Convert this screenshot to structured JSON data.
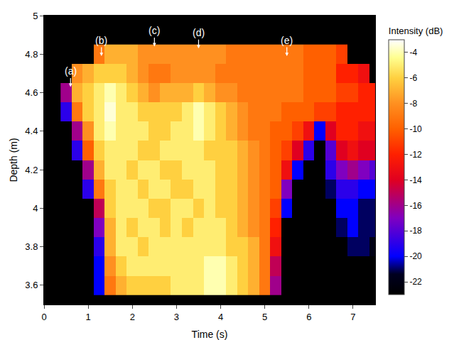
{
  "chart_data": {
    "type": "heatmap",
    "xlabel": "Time (s)",
    "ylabel": "Depth (m)",
    "xlim": [
      0,
      7.5
    ],
    "ylim": [
      3.5,
      5
    ],
    "xticks": [
      0,
      1,
      2,
      3,
      4,
      5,
      6,
      7
    ],
    "yticks": [
      3.6,
      3.8,
      4,
      4.2,
      4.4,
      4.6,
      4.8,
      5
    ],
    "x": [
      0.5,
      0.75,
      1.0,
      1.25,
      1.5,
      1.75,
      2.0,
      2.25,
      2.5,
      2.75,
      3.0,
      3.25,
      3.5,
      3.75,
      4.0,
      4.25,
      4.5,
      4.75,
      5.0,
      5.25,
      5.5,
      5.75,
      6.0,
      6.25,
      6.5,
      6.75,
      7.0,
      7.25,
      7.5
    ],
    "y": [
      3.6,
      3.7,
      3.8,
      3.9,
      4.0,
      4.1,
      4.2,
      4.3,
      4.4,
      4.5,
      4.6,
      4.7,
      4.8
    ],
    "z": [
      [
        null,
        null,
        null,
        -20,
        -9,
        -7,
        -6,
        -6,
        -6,
        -6,
        -5,
        -5,
        -5,
        -4,
        -4,
        -5,
        -6,
        -7,
        -9,
        -16,
        null,
        null,
        null,
        null,
        null,
        null,
        null,
        null,
        null
      ],
      [
        null,
        null,
        null,
        -20,
        -8,
        -6,
        -5,
        -5,
        -5,
        -5,
        -5,
        -5,
        -5,
        -4,
        -4,
        -5,
        -6,
        -7,
        -9,
        -15,
        null,
        null,
        null,
        null,
        null,
        null,
        null,
        null,
        null
      ],
      [
        null,
        null,
        null,
        -19,
        -7,
        -5,
        -5,
        -6,
        -5,
        -5,
        -5,
        -5,
        -5,
        -5,
        -5,
        -6,
        -6,
        -7,
        -9,
        -13,
        null,
        null,
        null,
        null,
        null,
        null,
        -21,
        -21,
        -22
      ],
      [
        null,
        null,
        null,
        -17,
        -7,
        -5,
        -6,
        -5,
        -5,
        -6,
        -5,
        -6,
        -5,
        -5,
        -5,
        -6,
        -7,
        -8,
        -9,
        -12,
        null,
        null,
        null,
        null,
        null,
        -21,
        -20,
        -21,
        -21
      ],
      [
        null,
        null,
        null,
        -15,
        -6,
        -5,
        -5,
        -5,
        -6,
        -6,
        -5,
        -5,
        -6,
        -5,
        -6,
        -6,
        -7,
        -8,
        -9,
        -11,
        -20,
        null,
        null,
        null,
        null,
        -20,
        -20,
        -21,
        -21
      ],
      [
        null,
        null,
        -19,
        -9,
        -6,
        -5,
        -5,
        -6,
        -5,
        -5,
        -6,
        -6,
        -5,
        -5,
        -6,
        -6,
        -7,
        -8,
        -9,
        -10,
        -17,
        null,
        null,
        null,
        -21,
        -19,
        -19,
        -20,
        -20
      ],
      [
        null,
        null,
        -16,
        -7,
        -5,
        -5,
        -6,
        -5,
        -5,
        -6,
        -6,
        -5,
        -5,
        -5,
        -6,
        -6,
        -7,
        -8,
        -9,
        -10,
        -13,
        -20,
        null,
        null,
        -19,
        -17,
        -16,
        -17,
        -18
      ],
      [
        null,
        -19,
        -10,
        -6,
        -5,
        -5,
        -5,
        -6,
        -6,
        -5,
        -5,
        -5,
        -5,
        -6,
        -6,
        -6,
        -7,
        -8,
        -9,
        -10,
        -11,
        -14,
        -19,
        null,
        -18,
        -14,
        -13,
        -14,
        -14
      ],
      [
        null,
        -16,
        -8,
        -5,
        -4,
        -5,
        -5,
        -5,
        -6,
        -6,
        -5,
        -5,
        -4,
        -5,
        -6,
        -7,
        -8,
        -9,
        -9,
        -10,
        -10,
        -11,
        -13,
        -20,
        -14,
        -12,
        -12,
        -13,
        -13
      ],
      [
        -19,
        -9,
        -6,
        -5,
        -3.5,
        -5,
        -5,
        -6,
        -6,
        -6,
        -6,
        -5,
        -4,
        -5,
        -6,
        -7,
        -8,
        -9,
        -9,
        -9,
        -10,
        -10,
        -10,
        -11,
        -11,
        -12,
        -12,
        -12,
        -12
      ],
      [
        -16,
        -7,
        -6,
        -5,
        -4,
        -5,
        -6,
        -7,
        -8,
        -7,
        -7,
        -7,
        -6,
        -7,
        -8,
        -8,
        -9,
        -9,
        -9,
        -9,
        -9,
        -9,
        -10,
        -10,
        -10,
        -11,
        -11,
        -12,
        -12
      ],
      [
        null,
        -8,
        -7,
        -6,
        -6,
        -6,
        -7,
        -8,
        -9,
        -9,
        -8,
        -8,
        -8,
        -8,
        -9,
        -9,
        -9,
        -9,
        -9,
        -9,
        -9,
        -9,
        -10,
        -10,
        -10,
        -12,
        -12,
        -13,
        null
      ],
      [
        null,
        null,
        null,
        -9,
        -7,
        -7,
        -7,
        -8,
        -8,
        -8,
        -8,
        -8,
        -8,
        -8,
        -8,
        -9,
        -9,
        -9,
        -9,
        -9,
        -9,
        -9,
        -10,
        -10,
        -10,
        -11,
        null,
        null,
        null
      ]
    ],
    "colorbar": {
      "title": "Intensity (dB)",
      "range": [
        -23,
        -3
      ],
      "ticks": [
        -22,
        -20,
        -18,
        -16,
        -14,
        -12,
        -10,
        -8,
        -6,
        -4
      ]
    },
    "annotations": [
      {
        "text": "(a)",
        "x": 0.6,
        "y": 4.63
      },
      {
        "text": "(b)",
        "x": 1.3,
        "y": 4.79
      },
      {
        "text": "(c)",
        "x": 2.5,
        "y": 4.84
      },
      {
        "text": "(d)",
        "x": 3.5,
        "y": 4.83
      },
      {
        "text": "(e)",
        "x": 5.5,
        "y": 4.79
      }
    ]
  }
}
